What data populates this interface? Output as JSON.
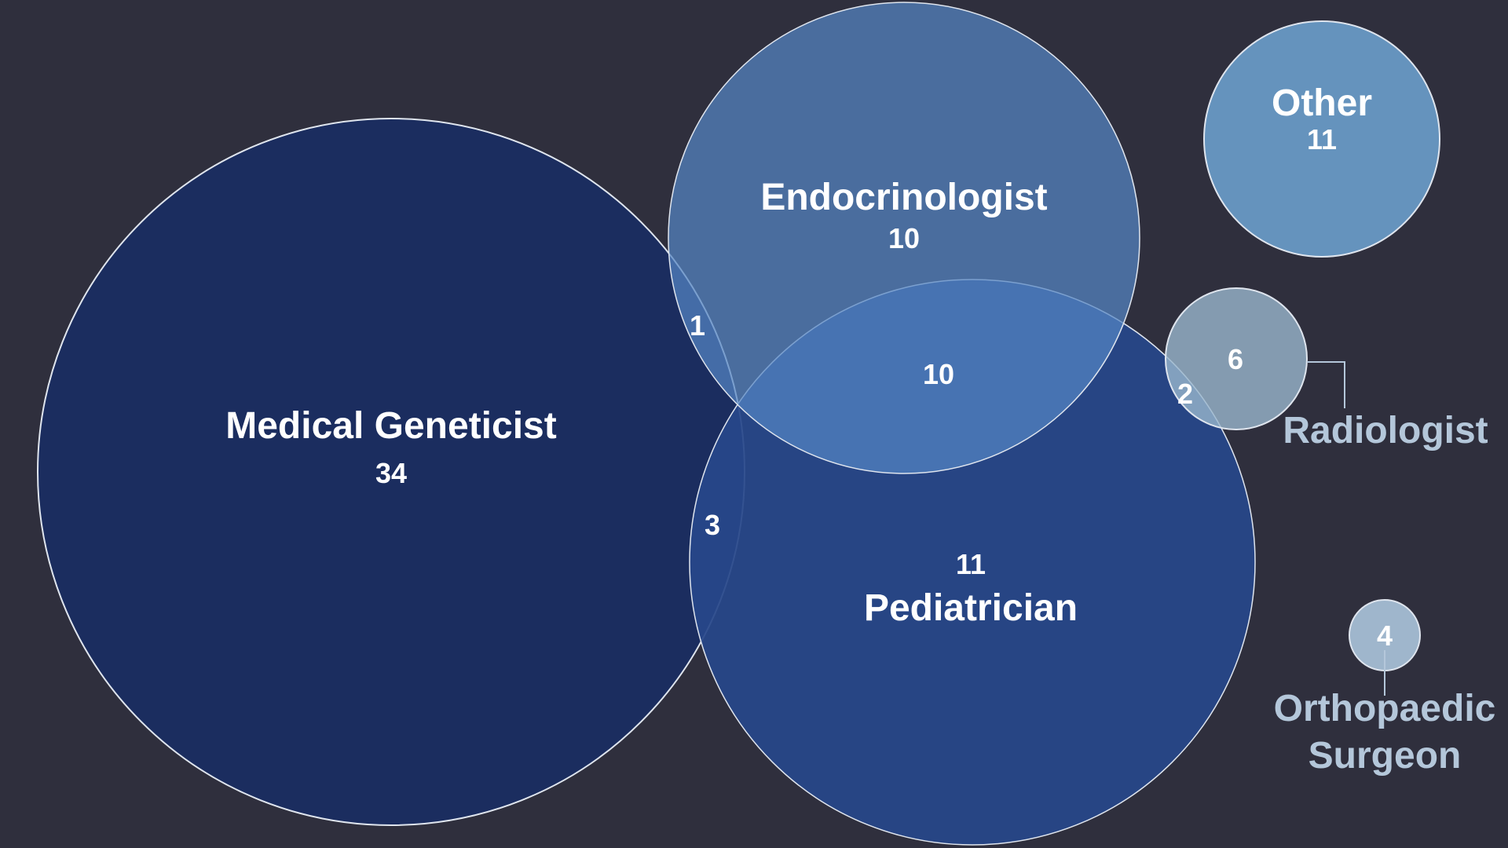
{
  "diagram": {
    "sets": [
      {
        "key": "medical-geneticist",
        "label": "Medical Geneticist",
        "count": "34",
        "color": "#1b2d5f"
      },
      {
        "key": "endocrinologist",
        "label": "Endocrinologist",
        "count": "10",
        "color": "#4d74aa"
      },
      {
        "key": "pediatrician",
        "label": "Pediatrician",
        "count": "11",
        "color": "#27478a"
      },
      {
        "key": "other",
        "label": "Other",
        "count": "11",
        "color": "#6593bd"
      },
      {
        "key": "radiologist",
        "label": "Radiologist",
        "count": "6",
        "color": "#87a5bf"
      },
      {
        "key": "orthopaedic-surgeon",
        "label_line1": "Orthopaedic",
        "label_line2": "Surgeon",
        "count": "4",
        "color": "#9fb6cc"
      }
    ],
    "intersections": [
      {
        "sets": [
          "medical-geneticist",
          "endocrinologist"
        ],
        "count": "1"
      },
      {
        "sets": [
          "medical-geneticist",
          "pediatrician"
        ],
        "count": "3"
      },
      {
        "sets": [
          "endocrinologist",
          "pediatrician"
        ],
        "count": "10"
      },
      {
        "sets": [
          "pediatrician",
          "radiologist"
        ],
        "count": "2"
      }
    ],
    "stroke_color": "#dfe5ee",
    "outside_label_color": "#b4c7da"
  }
}
